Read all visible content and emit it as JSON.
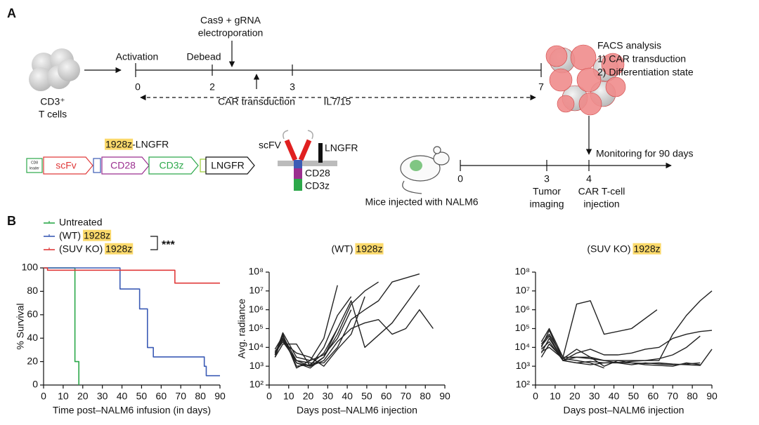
{
  "panel_a": {
    "label": "A",
    "cells": [
      "CD3⁺",
      "T cells"
    ],
    "timeline": {
      "ticks": [
        "0",
        "2",
        "3",
        "7"
      ],
      "events": [
        "Activation",
        "Debead"
      ],
      "electroporation": [
        "Cas9 + gRNA",
        "electroporation"
      ],
      "below": [
        "CAR transduction",
        "IL7/15"
      ]
    },
    "facs": [
      "FACS analysis",
      "1) CAR transduction",
      "2) Differentiation state"
    ],
    "construct": {
      "title": "1928z-LNGFR",
      "leader": [
        "CD8",
        "leader"
      ],
      "parts": [
        "scFv",
        "CD28",
        "CD3z",
        "LNGFR"
      ]
    },
    "receptor": [
      "scFV",
      "LNGFR",
      "CD28",
      "CD3z"
    ],
    "mouse": {
      "caption": "Mice injected with NALM6",
      "ticks": [
        "0",
        "3",
        "4"
      ],
      "events": [
        [
          "Tumor",
          "imaging"
        ],
        [
          "CAR T-cell",
          "injection"
        ]
      ],
      "monitor": "Monitoring for 90 days"
    }
  },
  "panel_b_label": "B",
  "chart_data": [
    {
      "type": "line",
      "drawstyle": "steps-post",
      "x_label": "Time post–NALM6 infusion (in days)",
      "y_label": "% Survival",
      "xlim": [
        0,
        90
      ],
      "xticks": [
        0,
        10,
        20,
        30,
        40,
        50,
        60,
        70,
        80,
        90
      ],
      "ylim": [
        0,
        100
      ],
      "yticks": [
        0,
        20,
        40,
        60,
        80,
        100
      ],
      "annotation": "***",
      "series": [
        {
          "name": "Untreated",
          "color": "#2ca84a",
          "x": [
            0,
            16,
            18
          ],
          "values": [
            100,
            20,
            0
          ]
        },
        {
          "name": "(WT) 1928z",
          "color": "#3b5bb5",
          "x": [
            0,
            39,
            49,
            53,
            56,
            82,
            83,
            90
          ],
          "values": [
            100,
            82,
            65,
            32,
            24,
            16,
            8,
            8
          ]
        },
        {
          "name": "(SUV KO) 1928z",
          "color": "#e03a3a",
          "x": [
            0,
            2,
            67,
            90
          ],
          "values": [
            100,
            98,
            87,
            87
          ]
        }
      ]
    },
    {
      "type": "line",
      "title": "(WT) 1928z",
      "log_y": true,
      "x_label": "Days post–NALM6 injection",
      "y_label": "Avg. radiance",
      "xlim": [
        0,
        90
      ],
      "xticks": [
        0,
        10,
        20,
        30,
        40,
        50,
        60,
        70,
        80,
        90
      ],
      "ylim": [
        100,
        100000000
      ],
      "yticks": [
        {
          "value": 100,
          "label": "10²"
        },
        {
          "value": 1000,
          "label": "10³"
        },
        {
          "value": 10000,
          "label": "10⁴"
        },
        {
          "value": 100000,
          "label": "10⁵"
        },
        {
          "value": 1000000,
          "label": "10⁶"
        },
        {
          "value": 10000000,
          "label": "10⁷"
        },
        {
          "value": 100000000,
          "label": "10⁸"
        }
      ],
      "series": [
        {
          "color": "#222222",
          "x": [
            3,
            7,
            14,
            21,
            28,
            35
          ],
          "values": [
            4000,
            60000,
            3000,
            2000,
            30000,
            20000000
          ]
        },
        {
          "color": "#222222",
          "x": [
            3,
            7,
            14,
            21,
            28,
            35,
            42,
            49,
            56
          ],
          "values": [
            5000,
            30000,
            1500,
            1000,
            3000,
            50000,
            2000000,
            10000000,
            30000000
          ]
        },
        {
          "color": "#222222",
          "x": [
            3,
            7,
            14,
            21,
            28,
            35,
            42,
            49,
            56,
            63,
            77
          ],
          "values": [
            6000,
            20000,
            2000,
            1500,
            1500,
            10000,
            300000,
            1000000,
            3000000,
            30000000,
            80000000
          ]
        },
        {
          "color": "#222222",
          "x": [
            3,
            7,
            14,
            21,
            28,
            35,
            42,
            49,
            56,
            63,
            70,
            77,
            84
          ],
          "values": [
            3000,
            15000,
            15000,
            1000,
            2000,
            20000,
            100000,
            200000,
            300000,
            50000,
            100000,
            1000000,
            100000
          ]
        },
        {
          "color": "#222222",
          "x": [
            3,
            7,
            14,
            21,
            28,
            35,
            42,
            49,
            63,
            77
          ],
          "values": [
            8000,
            40000,
            1000,
            1200,
            5000,
            100000,
            3000000,
            10000,
            200000,
            20000000
          ]
        },
        {
          "color": "#222222",
          "x": [
            3,
            7,
            14,
            21,
            28,
            35,
            42
          ],
          "values": [
            4000,
            50000,
            800,
            2000,
            4000,
            30000,
            1000000
          ]
        },
        {
          "color": "#222222",
          "x": [
            3,
            7,
            14,
            21,
            28,
            35,
            42,
            49
          ],
          "values": [
            5000,
            20000,
            5000,
            3000,
            1000,
            8000,
            50000,
            5000000
          ]
        },
        {
          "color": "#222222",
          "x": [
            3,
            7,
            14,
            21,
            28,
            35,
            42
          ],
          "values": [
            3000,
            40000,
            2000,
            1000,
            10000,
            500000,
            5000000
          ]
        },
        {
          "color": "#222222",
          "x": [
            3,
            7,
            14,
            21,
            28,
            35
          ],
          "values": [
            6000,
            25000,
            1500,
            800,
            3000,
            100000
          ]
        }
      ]
    },
    {
      "type": "line",
      "title": "(SUV KO) 1928z",
      "log_y": true,
      "x_label": "Days post–NALM6 injection",
      "xlim": [
        0,
        90
      ],
      "xticks": [
        0,
        10,
        20,
        30,
        40,
        50,
        60,
        70,
        80,
        90
      ],
      "ylim": [
        100,
        100000000
      ],
      "yticks": [
        {
          "value": 100,
          "label": "10²"
        },
        {
          "value": 1000,
          "label": "10³"
        },
        {
          "value": 10000,
          "label": "10⁴"
        },
        {
          "value": 100000,
          "label": "10⁵"
        },
        {
          "value": 1000000,
          "label": "10⁶"
        },
        {
          "value": 10000000,
          "label": "10⁷"
        },
        {
          "value": 100000000,
          "label": "10⁸"
        }
      ],
      "series": [
        {
          "color": "#222222",
          "x": [
            3,
            7,
            14,
            21,
            28,
            35,
            42,
            49,
            56,
            63,
            70,
            77,
            84,
            90
          ],
          "values": [
            10000,
            80000,
            2000,
            3000,
            2500,
            2000,
            2000,
            2000,
            2000,
            2000,
            50000,
            500000,
            3000000,
            10000000
          ]
        },
        {
          "color": "#222222",
          "x": [
            3,
            7,
            14,
            21,
            28,
            35,
            49,
            62
          ],
          "values": [
            20000,
            100000,
            3000,
            2000000,
            3000000,
            50000,
            100000,
            1000000
          ]
        },
        {
          "color": "#222222",
          "x": [
            3,
            7,
            14,
            21,
            28,
            35,
            42,
            49,
            56,
            63,
            70,
            77,
            84,
            90
          ],
          "values": [
            5000,
            30000,
            2000,
            5000,
            8000,
            4000,
            4000,
            5000,
            8000,
            10000,
            30000,
            50000,
            70000,
            80000
          ]
        },
        {
          "color": "#222222",
          "x": [
            3,
            7,
            14,
            21,
            28,
            35,
            42,
            49,
            56,
            63,
            70,
            77,
            84
          ],
          "values": [
            15000,
            50000,
            3000,
            3000,
            3000,
            2000,
            1500,
            1800,
            2000,
            2500,
            4000,
            10000,
            40000
          ]
        },
        {
          "color": "#222222",
          "x": [
            3,
            7,
            14,
            21,
            28,
            35,
            42,
            49,
            56,
            63,
            70,
            77,
            84
          ],
          "values": [
            8000,
            20000,
            2000,
            1500,
            1200,
            1500,
            1500,
            1200,
            1500,
            1300,
            1200,
            1300,
            1500
          ]
        },
        {
          "color": "#222222",
          "x": [
            3,
            7,
            14,
            21,
            28,
            35
          ],
          "values": [
            3000,
            15000,
            2500,
            2000,
            1500,
            800
          ]
        },
        {
          "color": "#222222",
          "x": [
            3,
            7,
            14,
            21,
            28,
            35,
            42,
            49,
            56,
            63,
            70,
            77,
            84,
            90
          ],
          "values": [
            12000,
            40000,
            2000,
            1500,
            1800,
            1500,
            1600,
            1500,
            1400,
            1500,
            1300,
            1200,
            1100,
            8000
          ]
        },
        {
          "color": "#222222",
          "x": [
            3,
            7,
            14,
            21,
            28,
            35,
            42,
            49,
            56,
            63,
            70,
            77,
            84
          ],
          "values": [
            6000,
            10000,
            2500,
            8000,
            3000,
            1000,
            2000,
            1500,
            1200,
            1100,
            1000,
            1500,
            1200
          ]
        }
      ]
    }
  ]
}
